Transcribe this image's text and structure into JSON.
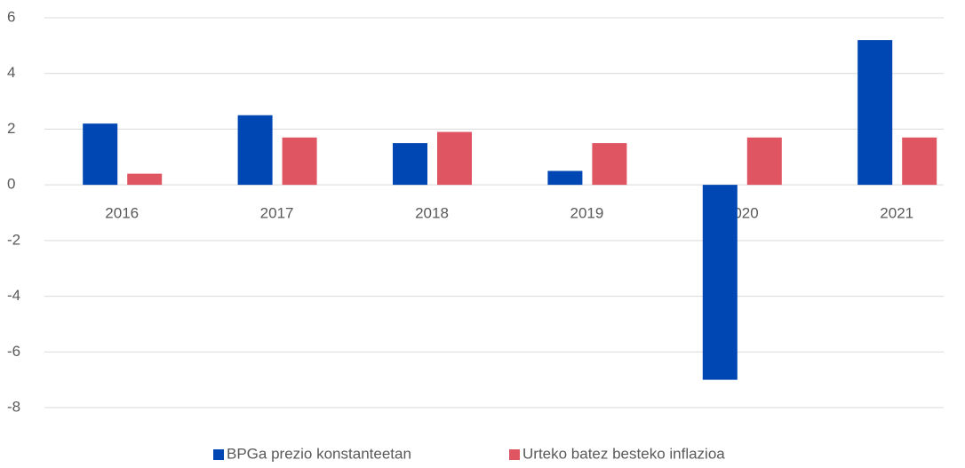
{
  "chart_data": {
    "type": "bar",
    "categories": [
      "2016",
      "2017",
      "2018",
      "2019",
      "2020",
      "2021"
    ],
    "series": [
      {
        "name": "BPGa prezio konstanteetan",
        "color": "#0047b3",
        "values": [
          2.2,
          2.5,
          1.5,
          0.5,
          -7.0,
          5.2
        ]
      },
      {
        "name": "Urteko batez besteko inflazioa",
        "color": "#e05562",
        "values": [
          0.4,
          1.7,
          1.9,
          1.5,
          1.7,
          1.7
        ]
      }
    ],
    "ylim": [
      -8,
      6
    ],
    "yticks": [
      -8,
      -6,
      -4,
      -2,
      0,
      2,
      4,
      6
    ],
    "grid": true,
    "legend": "bottom"
  }
}
